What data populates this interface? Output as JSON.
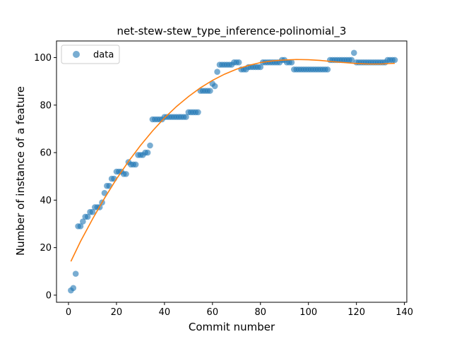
{
  "chart_data": {
    "type": "scatter",
    "title": "net-stew-stew_type_inference-polinomial_3",
    "xlabel": "Commit number",
    "ylabel": "Number of instance of a feature",
    "xlim": [
      -5,
      141
    ],
    "ylim": [
      -3,
      107
    ],
    "xticks": [
      0,
      20,
      40,
      60,
      80,
      100,
      120,
      140
    ],
    "yticks": [
      0,
      20,
      40,
      60,
      80,
      100
    ],
    "grid": false,
    "legend": {
      "placement": "top-left",
      "entries": [
        "data"
      ]
    },
    "colors": {
      "data": "#1f77b4",
      "fit": "#ff7f0e"
    },
    "series": [
      {
        "name": "data",
        "kind": "scatter",
        "points": [
          [
            1,
            2
          ],
          [
            2,
            3
          ],
          [
            3,
            9
          ],
          [
            4,
            29
          ],
          [
            5,
            29
          ],
          [
            6,
            31
          ],
          [
            7,
            33
          ],
          [
            8,
            33
          ],
          [
            9,
            35
          ],
          [
            10,
            35
          ],
          [
            11,
            37
          ],
          [
            12,
            37
          ],
          [
            13,
            37
          ],
          [
            14,
            39
          ],
          [
            15,
            43
          ],
          [
            16,
            46
          ],
          [
            17,
            46
          ],
          [
            18,
            49
          ],
          [
            19,
            49
          ],
          [
            20,
            52
          ],
          [
            21,
            52
          ],
          [
            22,
            52
          ],
          [
            23,
            51
          ],
          [
            24,
            51
          ],
          [
            25,
            56
          ],
          [
            26,
            55
          ],
          [
            27,
            55
          ],
          [
            28,
            55
          ],
          [
            29,
            59
          ],
          [
            30,
            59
          ],
          [
            31,
            59
          ],
          [
            32,
            60
          ],
          [
            33,
            60
          ],
          [
            34,
            63
          ],
          [
            35,
            74
          ],
          [
            36,
            74
          ],
          [
            37,
            74
          ],
          [
            38,
            74
          ],
          [
            39,
            74
          ],
          [
            40,
            75
          ],
          [
            41,
            75
          ],
          [
            42,
            75
          ],
          [
            43,
            75
          ],
          [
            44,
            75
          ],
          [
            45,
            75
          ],
          [
            46,
            75
          ],
          [
            47,
            75
          ],
          [
            48,
            75
          ],
          [
            49,
            75
          ],
          [
            50,
            77
          ],
          [
            51,
            77
          ],
          [
            52,
            77
          ],
          [
            53,
            77
          ],
          [
            54,
            77
          ],
          [
            55,
            86
          ],
          [
            56,
            86
          ],
          [
            57,
            86
          ],
          [
            58,
            86
          ],
          [
            59,
            86
          ],
          [
            60,
            89
          ],
          [
            61,
            88
          ],
          [
            62,
            94
          ],
          [
            63,
            97
          ],
          [
            64,
            97
          ],
          [
            65,
            97
          ],
          [
            66,
            97
          ],
          [
            67,
            97
          ],
          [
            68,
            97
          ],
          [
            69,
            98
          ],
          [
            70,
            98
          ],
          [
            71,
            98
          ],
          [
            72,
            95
          ],
          [
            73,
            95
          ],
          [
            74,
            95
          ],
          [
            75,
            96
          ],
          [
            76,
            96
          ],
          [
            77,
            96
          ],
          [
            78,
            96
          ],
          [
            79,
            96
          ],
          [
            80,
            96
          ],
          [
            81,
            98
          ],
          [
            82,
            98
          ],
          [
            83,
            98
          ],
          [
            84,
            98
          ],
          [
            85,
            98
          ],
          [
            86,
            98
          ],
          [
            87,
            98
          ],
          [
            88,
            98
          ],
          [
            89,
            99
          ],
          [
            90,
            99
          ],
          [
            91,
            98
          ],
          [
            92,
            98
          ],
          [
            93,
            98
          ],
          [
            94,
            95
          ],
          [
            95,
            95
          ],
          [
            96,
            95
          ],
          [
            97,
            95
          ],
          [
            98,
            95
          ],
          [
            99,
            95
          ],
          [
            100,
            95
          ],
          [
            101,
            95
          ],
          [
            102,
            95
          ],
          [
            103,
            95
          ],
          [
            104,
            95
          ],
          [
            105,
            95
          ],
          [
            106,
            95
          ],
          [
            107,
            95
          ],
          [
            108,
            95
          ],
          [
            109,
            99
          ],
          [
            110,
            99
          ],
          [
            111,
            99
          ],
          [
            112,
            99
          ],
          [
            113,
            99
          ],
          [
            114,
            99
          ],
          [
            115,
            99
          ],
          [
            116,
            99
          ],
          [
            117,
            99
          ],
          [
            118,
            99
          ],
          [
            119,
            102
          ],
          [
            120,
            98
          ],
          [
            121,
            98
          ],
          [
            122,
            98
          ],
          [
            123,
            98
          ],
          [
            124,
            98
          ],
          [
            125,
            98
          ],
          [
            126,
            98
          ],
          [
            127,
            98
          ],
          [
            128,
            98
          ],
          [
            129,
            98
          ],
          [
            130,
            98
          ],
          [
            131,
            98
          ],
          [
            132,
            98
          ],
          [
            133,
            99
          ],
          [
            134,
            99
          ],
          [
            135,
            99
          ],
          [
            136,
            99
          ]
        ]
      },
      {
        "kind": "line",
        "points": [
          [
            1,
            14.2
          ],
          [
            5,
            22.6
          ],
          [
            10,
            32.0
          ],
          [
            15,
            40.8
          ],
          [
            20,
            48.9
          ],
          [
            25,
            56.3
          ],
          [
            30,
            63.0
          ],
          [
            35,
            69.1
          ],
          [
            40,
            74.6
          ],
          [
            45,
            79.4
          ],
          [
            50,
            83.6
          ],
          [
            55,
            87.3
          ],
          [
            60,
            90.4
          ],
          [
            65,
            93.0
          ],
          [
            70,
            95.1
          ],
          [
            75,
            96.7
          ],
          [
            80,
            97.9
          ],
          [
            85,
            98.6
          ],
          [
            90,
            99.0
          ],
          [
            95,
            99.2
          ],
          [
            100,
            99.1
          ],
          [
            105,
            98.8
          ],
          [
            110,
            98.3
          ],
          [
            115,
            97.9
          ],
          [
            120,
            97.5
          ],
          [
            125,
            97.3
          ],
          [
            130,
            97.3
          ],
          [
            136,
            97.6
          ]
        ]
      }
    ]
  }
}
